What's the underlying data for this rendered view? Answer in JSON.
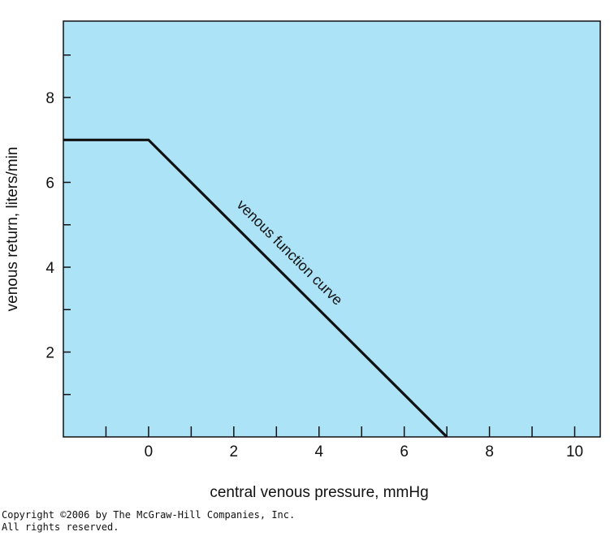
{
  "chart_data": {
    "type": "line",
    "title": "",
    "xlabel": "central venous pressure, mmHg",
    "ylabel": "venous return, liters/min",
    "xlim": [
      -2,
      10.6
    ],
    "ylim": [
      0,
      9.8
    ],
    "x_ticks": [
      -1,
      0,
      1,
      2,
      3,
      4,
      5,
      6,
      7,
      8,
      9,
      10
    ],
    "x_tick_labels": [
      {
        "value": 0,
        "label": "0"
      },
      {
        "value": 2,
        "label": "2"
      },
      {
        "value": 4,
        "label": "4"
      },
      {
        "value": 6,
        "label": "6"
      },
      {
        "value": 8,
        "label": "8"
      },
      {
        "value": 10,
        "label": "10"
      }
    ],
    "y_ticks": [
      1,
      2,
      3,
      4,
      5,
      6,
      7,
      8,
      9
    ],
    "y_tick_labels": [
      {
        "value": 2,
        "label": "2"
      },
      {
        "value": 4,
        "label": "4"
      },
      {
        "value": 6,
        "label": "6"
      },
      {
        "value": 8,
        "label": "8"
      }
    ],
    "grid": false,
    "background_color": "#ade3f7",
    "series": [
      {
        "x": [
          -2,
          0,
          7
        ],
        "y": [
          7,
          7,
          0
        ],
        "color": "#111111"
      }
    ],
    "annotations": [
      {
        "text": "venous function curve",
        "x": 2.05,
        "y": 5.45
      }
    ]
  },
  "copyright": {
    "line1": "Copyright ©2006 by The McGraw-Hill Companies, Inc.",
    "line2": "All rights reserved."
  }
}
